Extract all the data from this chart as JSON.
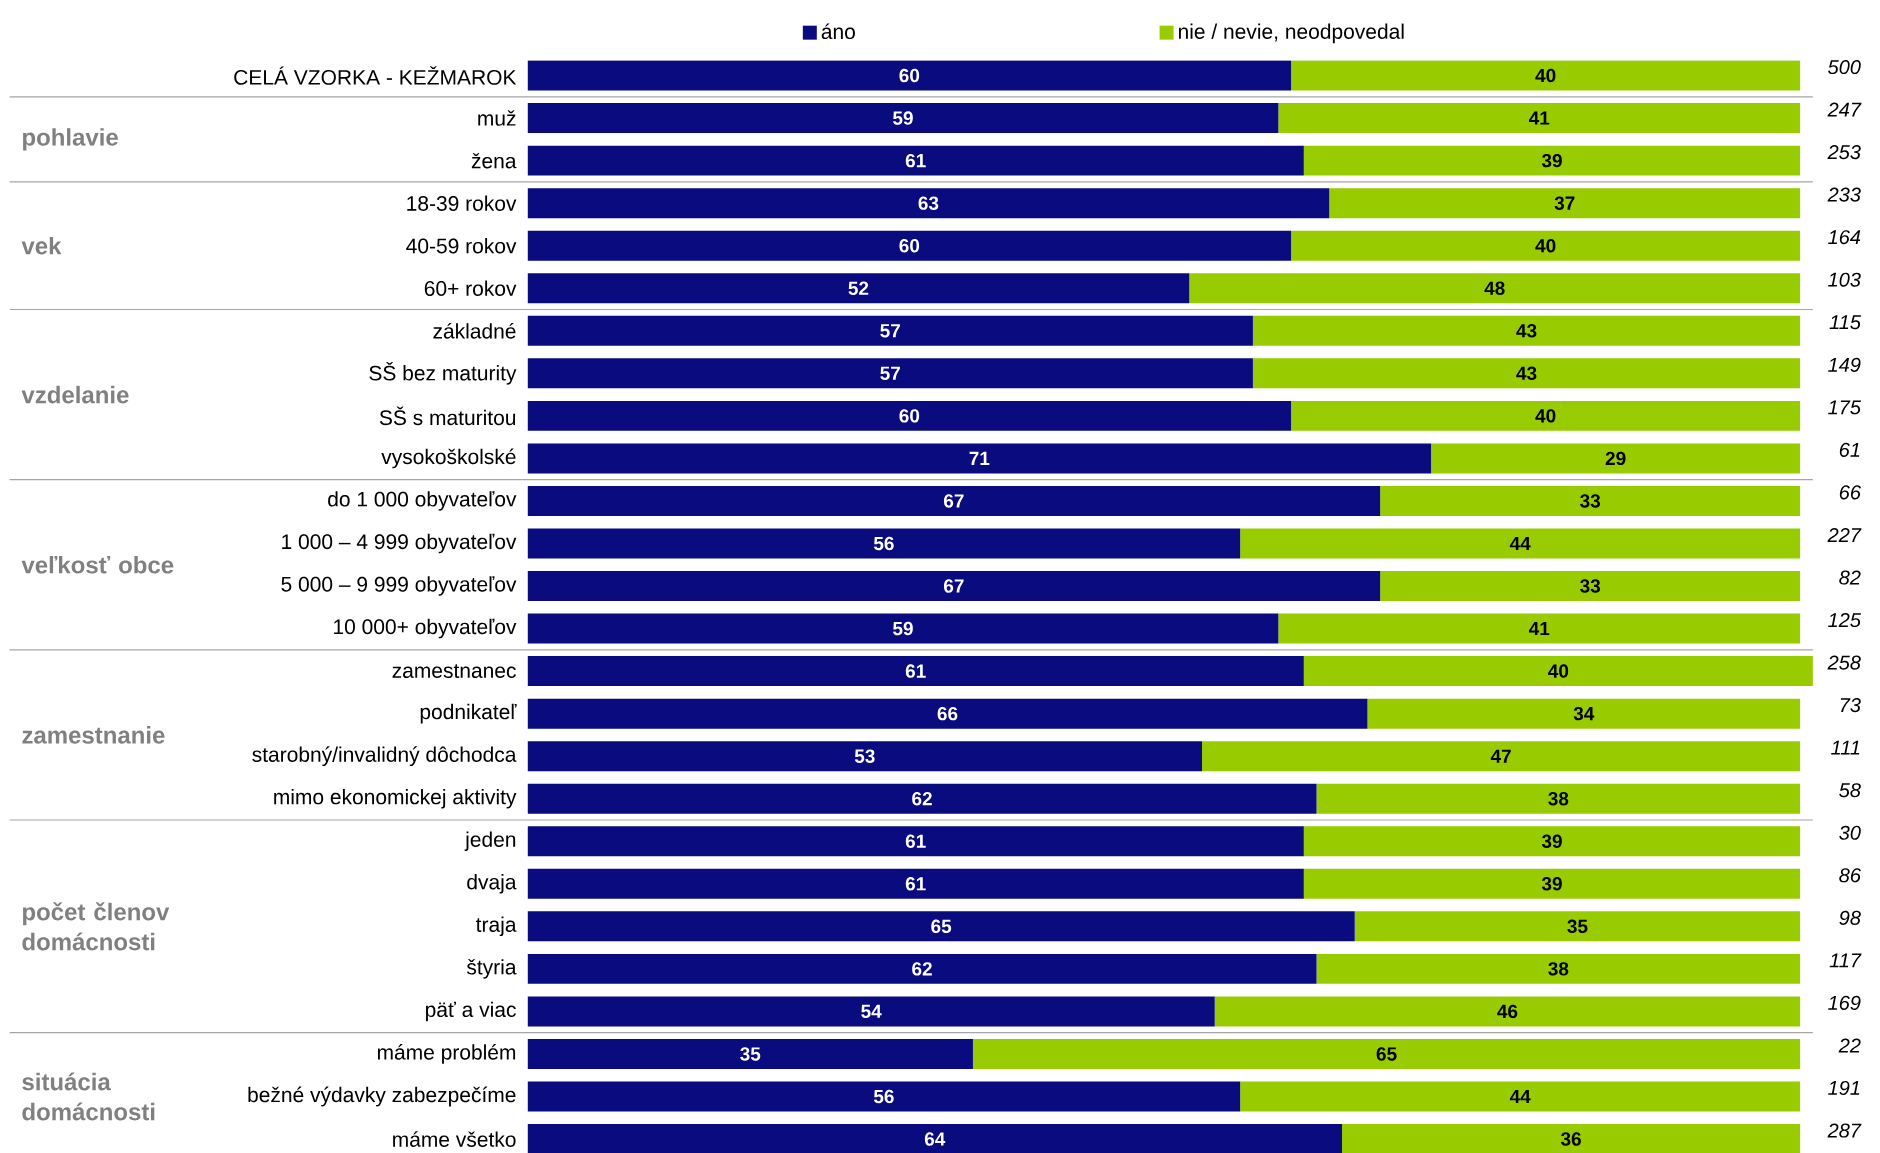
{
  "chart_data": {
    "type": "bar",
    "orientation": "horizontal",
    "stacked": true,
    "data_labels": true,
    "legend": "top",
    "categories": [
      "CELÁ VZORKA - KEŽMAROK",
      "muž",
      "žena",
      "18-39 rokov",
      "40-59 rokov",
      "60+ rokov",
      "základné",
      "SŠ bez maturity",
      "SŠ s maturitou",
      "vysokoškolské",
      "do 1 000 obyvateľov",
      "1 000 – 4 999 obyvateľov",
      "5 000 – 9 999 obyvateľov",
      "10 000+ obyvateľov",
      "zamestnanec",
      "podnikateľ",
      "starobný/invalidný dôchodca",
      "mimo ekonomickej aktivity",
      "jeden",
      "dvaja",
      "traja",
      "štyria",
      "päť a viac",
      "máme problém",
      "bežné výdavky zabezpečíme",
      "máme všetko"
    ],
    "series": [
      {
        "name": "áno",
        "color": "#0b0b80",
        "values": [
          60,
          59,
          61,
          63,
          60,
          52,
          57,
          57,
          60,
          71,
          67,
          56,
          67,
          59,
          61,
          66,
          53,
          62,
          61,
          61,
          65,
          62,
          54,
          35,
          56,
          64
        ]
      },
      {
        "name": "nie / nevie, neodpovedal",
        "color": "#99cc00",
        "values": [
          40,
          41,
          39,
          37,
          40,
          48,
          43,
          43,
          40,
          29,
          33,
          44,
          33,
          41,
          40,
          34,
          47,
          38,
          39,
          39,
          35,
          38,
          46,
          65,
          44,
          36
        ]
      }
    ],
    "annotations": [
      "500",
      "247",
      "253",
      "233",
      "164",
      "103",
      "115",
      "149",
      "175",
      "61",
      "66",
      "227",
      "82",
      "125",
      "258",
      "73",
      "111",
      "58",
      "30",
      "86",
      "98",
      "117",
      "169",
      "22",
      "191",
      "287",
      "pohlavie",
      "vek",
      "vzdelanie",
      "veľkosť obce",
      "zamestnanie",
      "počet členov domácnosti",
      "situácia domácnosti"
    ]
  }
}
